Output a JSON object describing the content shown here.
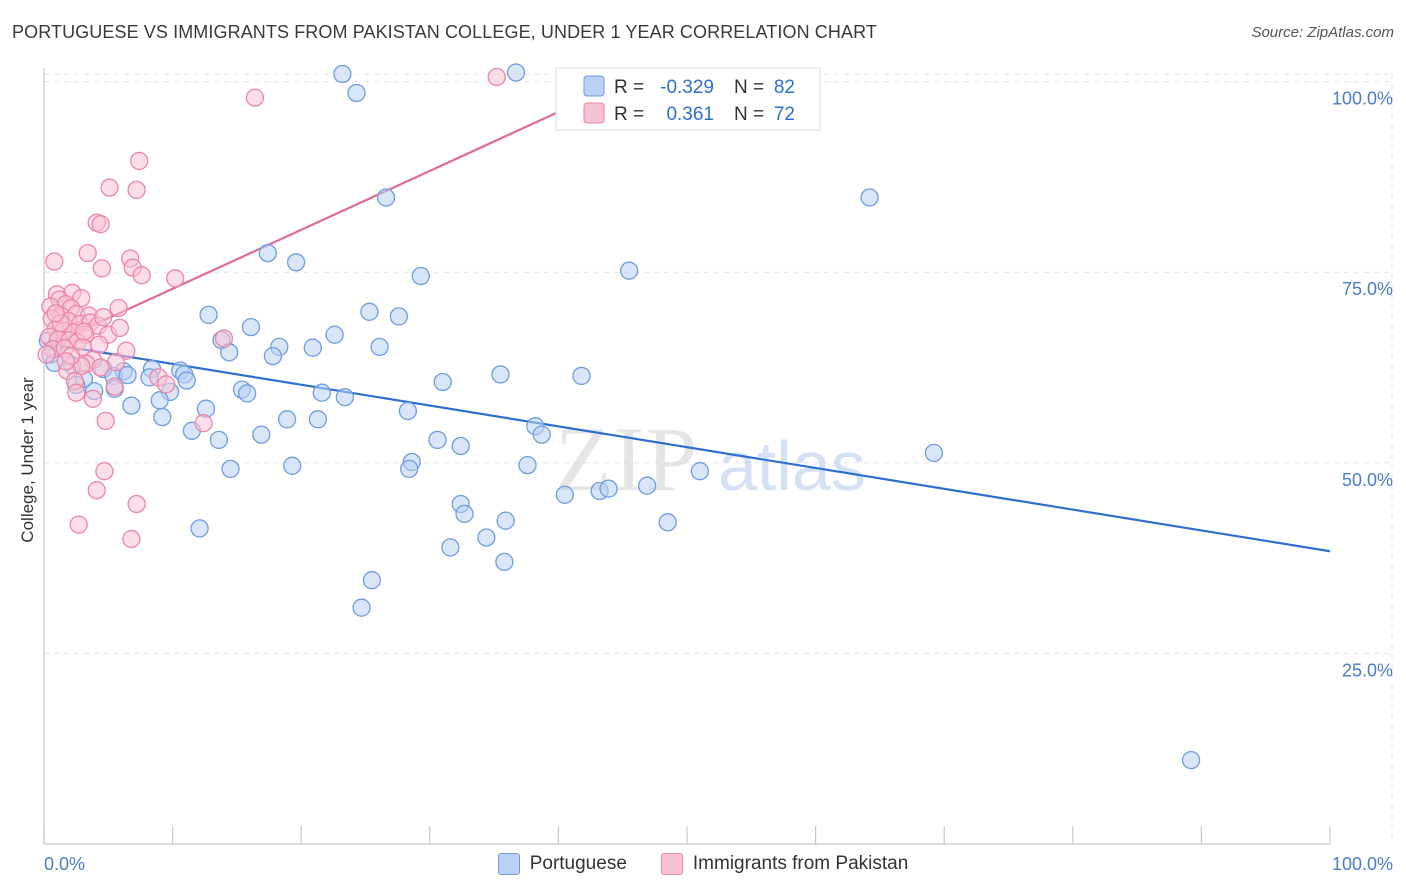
{
  "title": "PORTUGUESE VS IMMIGRANTS FROM PAKISTAN COLLEGE, UNDER 1 YEAR CORRELATION CHART",
  "source": "Source: ZipAtlas.com",
  "watermark": {
    "zip": "ZIP",
    "atlas": "atlas"
  },
  "colors": {
    "blue_fill": "#b9d1f3",
    "blue_stroke": "#6f9de0",
    "blue_line": "#2f6fcf",
    "pink_fill": "#f7c2d3",
    "pink_stroke": "#eb86a8",
    "pink_line": "#e06a94",
    "tick_text": "#4a7cc9",
    "grid": "#e1e1e1"
  },
  "legend_stats": [
    {
      "r_label": "R =",
      "r_value": "-0.329",
      "n_label": "N =",
      "n_value": "82"
    },
    {
      "r_label": "R =",
      "r_value": "0.361",
      "n_label": "N =",
      "n_value": "72"
    }
  ],
  "chart_data": {
    "type": "scatter",
    "title": "PORTUGUESE VS IMMIGRANTS FROM PAKISTAN COLLEGE, UNDER 1 YEAR CORRELATION CHART",
    "xlabel": "",
    "ylabel": "College, Under 1 year",
    "xlim": [
      0,
      100
    ],
    "ylim": [
      0,
      103
    ],
    "x_ticks": [
      "0.0%",
      "100.0%"
    ],
    "y_ticks": [
      {
        "value": 25,
        "label": "25.0%"
      },
      {
        "value": 50,
        "label": "50.0%"
      },
      {
        "value": 75,
        "label": "75.0%"
      },
      {
        "value": 100,
        "label": "100.0%"
      }
    ],
    "grid": true,
    "legend_position": "bottom",
    "series": [
      {
        "name": "Portuguese",
        "color": "#6f9de0",
        "trend": {
          "x": [
            0,
            100
          ],
          "y": [
            65.7,
            38.4
          ]
        },
        "points": [
          [
            23.2,
            101
          ],
          [
            24.3,
            98.5
          ],
          [
            36.7,
            101.2
          ],
          [
            26.6,
            84.8
          ],
          [
            64.2,
            84.8
          ],
          [
            17.4,
            77.5
          ],
          [
            19.6,
            76.3
          ],
          [
            29.3,
            74.5
          ],
          [
            45.5,
            75.2
          ],
          [
            12.8,
            69.4
          ],
          [
            25.3,
            69.8
          ],
          [
            27.6,
            69.2
          ],
          [
            16.1,
            67.8
          ],
          [
            22.6,
            66.8
          ],
          [
            13.8,
            66.1
          ],
          [
            18.3,
            65.2
          ],
          [
            20.9,
            65.1
          ],
          [
            26.1,
            65.2
          ],
          [
            14.4,
            64.5
          ],
          [
            17.8,
            64
          ],
          [
            4.6,
            62.3
          ],
          [
            6.2,
            62
          ],
          [
            8.4,
            62.3
          ],
          [
            10.6,
            62.1
          ],
          [
            5.4,
            61.4
          ],
          [
            6.5,
            61.5
          ],
          [
            8.2,
            61.2
          ],
          [
            10.9,
            61.6
          ],
          [
            11.1,
            60.8
          ],
          [
            31,
            60.6
          ],
          [
            35.5,
            61.6
          ],
          [
            41.8,
            61.4
          ],
          [
            3.9,
            59.4
          ],
          [
            5.5,
            59.7
          ],
          [
            9.8,
            59.3
          ],
          [
            15.4,
            59.6
          ],
          [
            15.8,
            59.1
          ],
          [
            9,
            58.2
          ],
          [
            23.4,
            58.6
          ],
          [
            12.6,
            57.1
          ],
          [
            9.2,
            56
          ],
          [
            18.9,
            55.7
          ],
          [
            21.3,
            55.7
          ],
          [
            28.3,
            56.8
          ],
          [
            38.2,
            54.8
          ],
          [
            13.6,
            53
          ],
          [
            16.9,
            53.7
          ],
          [
            30.6,
            53
          ],
          [
            32.4,
            52.2
          ],
          [
            38.7,
            53.7
          ],
          [
            69.2,
            51.3
          ],
          [
            14.5,
            49.2
          ],
          [
            19.3,
            49.6
          ],
          [
            28.6,
            50.1
          ],
          [
            28.4,
            49.2
          ],
          [
            37.6,
            49.7
          ],
          [
            51,
            48.9
          ],
          [
            46.9,
            47
          ],
          [
            40.5,
            45.8
          ],
          [
            43.2,
            46.3
          ],
          [
            43.9,
            46.6
          ],
          [
            32.4,
            44.6
          ],
          [
            32.7,
            43.3
          ],
          [
            35.9,
            42.4
          ],
          [
            48.5,
            42.2
          ],
          [
            12.1,
            41.4
          ],
          [
            34.4,
            40.2
          ],
          [
            31.6,
            38.9
          ],
          [
            35.8,
            37
          ],
          [
            25.5,
            34.6
          ],
          [
            24.7,
            31
          ],
          [
            89.2,
            11
          ],
          [
            1,
            65.8
          ],
          [
            0.5,
            64.2
          ],
          [
            3.1,
            61
          ],
          [
            2.2,
            62.8
          ],
          [
            0.8,
            63.1
          ],
          [
            6.8,
            57.5
          ],
          [
            11.5,
            54.2
          ],
          [
            21.6,
            59.2
          ],
          [
            0.3,
            66
          ],
          [
            2.5,
            60.2
          ]
        ]
      },
      {
        "name": "Immigrants from Pakistan",
        "color": "#eb86a8",
        "trend": {
          "x": [
            0,
            40.5
          ],
          "y": [
            65.1,
            96.4
          ]
        },
        "points": [
          [
            35.2,
            100.6
          ],
          [
            16.4,
            97.9
          ],
          [
            7.4,
            89.6
          ],
          [
            5.1,
            86.1
          ],
          [
            7.2,
            85.8
          ],
          [
            4.1,
            81.5
          ],
          [
            4.4,
            81.3
          ],
          [
            3.4,
            77.5
          ],
          [
            0.8,
            76.4
          ],
          [
            6.7,
            76.8
          ],
          [
            4.5,
            75.5
          ],
          [
            6.9,
            75.6
          ],
          [
            7.6,
            74.6
          ],
          [
            10.2,
            74.2
          ],
          [
            1,
            72.1
          ],
          [
            2.2,
            72.3
          ],
          [
            2.9,
            71.6
          ],
          [
            1.2,
            71.4
          ],
          [
            1.7,
            70.8
          ],
          [
            2.1,
            70.3
          ],
          [
            0.5,
            70.5
          ],
          [
            5.8,
            70.3
          ],
          [
            1.3,
            69.3
          ],
          [
            2.5,
            69.5
          ],
          [
            3.5,
            69.3
          ],
          [
            0.6,
            68.9
          ],
          [
            1.9,
            68.6
          ],
          [
            2.8,
            68.2
          ],
          [
            3.6,
            68.4
          ],
          [
            4.2,
            68
          ],
          [
            0.9,
            67.5
          ],
          [
            1.5,
            67.3
          ],
          [
            2.3,
            67.1
          ],
          [
            3.2,
            66.8
          ],
          [
            5,
            66.8
          ],
          [
            0.4,
            66.5
          ],
          [
            1.1,
            66.2
          ],
          [
            2,
            66.1
          ],
          [
            2.6,
            65.8
          ],
          [
            14,
            66.3
          ],
          [
            0.7,
            64.9
          ],
          [
            1.6,
            65
          ],
          [
            3,
            65.2
          ],
          [
            4.3,
            65.5
          ],
          [
            6.4,
            64.7
          ],
          [
            3.8,
            63.5
          ],
          [
            3.3,
            63
          ],
          [
            5.6,
            63.2
          ],
          [
            2.9,
            62.7
          ],
          [
            1.8,
            62.1
          ],
          [
            4.4,
            62.5
          ],
          [
            8.9,
            61.2
          ],
          [
            2.4,
            60.7
          ],
          [
            5.5,
            60
          ],
          [
            9.5,
            60.3
          ],
          [
            2.5,
            59.2
          ],
          [
            3.8,
            58.4
          ],
          [
            0.2,
            64.2
          ],
          [
            4.8,
            55.5
          ],
          [
            12.4,
            55.2
          ],
          [
            4.7,
            48.9
          ],
          [
            4.1,
            46.4
          ],
          [
            7.2,
            44.6
          ],
          [
            2.7,
            41.9
          ],
          [
            6.8,
            40
          ],
          [
            1.3,
            68.3
          ],
          [
            2.1,
            64
          ],
          [
            0.9,
            69.6
          ],
          [
            3.1,
            67.2
          ],
          [
            1.7,
            63.3
          ],
          [
            4.6,
            69.1
          ],
          [
            5.9,
            67.7
          ]
        ]
      }
    ]
  }
}
